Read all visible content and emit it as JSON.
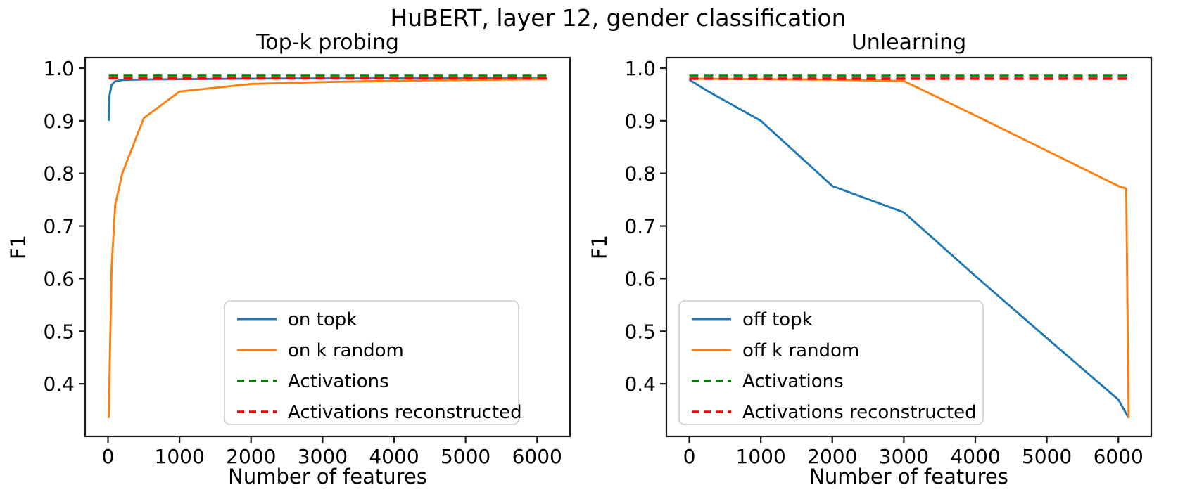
{
  "figure": {
    "title": "HuBERT, layer 12, gender classification",
    "background": "#ffffff"
  },
  "colors": {
    "blue": "#1f77b4",
    "orange": "#ff7f0e",
    "green": "#008000",
    "red": "#ff0000",
    "axis": "#1a1a1a",
    "text": "#000000",
    "legend_border": "#cccccc",
    "legend_bg": "#ffffff"
  },
  "chart_data": [
    {
      "type": "line",
      "title": "Top-k probing",
      "xlabel": "Number of features",
      "ylabel": "F1",
      "xlim": [
        -320,
        6460
      ],
      "ylim": [
        0.3,
        1.02
      ],
      "xticks": [
        0,
        1000,
        2000,
        3000,
        4000,
        5000,
        6000
      ],
      "yticks": [
        1.0,
        0.9,
        0.8,
        0.7,
        0.6,
        0.5,
        0.4
      ],
      "ytick_labels": [
        "1.0",
        "0.9",
        "0.8",
        "0.7",
        "0.6",
        "0.5",
        "0.4"
      ],
      "grid": false,
      "legend_position": "lower center inside",
      "series": [
        {
          "name": "on topk",
          "color_key": "blue",
          "style": "solid",
          "points": [
            [
              10,
              0.9
            ],
            [
              20,
              0.948
            ],
            [
              50,
              0.968
            ],
            [
              100,
              0.975
            ],
            [
              200,
              0.9775
            ],
            [
              500,
              0.9785
            ],
            [
              1000,
              0.979
            ],
            [
              2000,
              0.98
            ],
            [
              3000,
              0.9803
            ],
            [
              4000,
              0.9805
            ],
            [
              5000,
              0.9805
            ],
            [
              6144,
              0.9805
            ]
          ]
        },
        {
          "name": "on k random",
          "color_key": "orange",
          "style": "solid",
          "points": [
            [
              10,
              0.335
            ],
            [
              50,
              0.62
            ],
            [
              100,
              0.74
            ],
            [
              200,
              0.8
            ],
            [
              500,
              0.905
            ],
            [
              1000,
              0.9555
            ],
            [
              2000,
              0.97
            ],
            [
              3000,
              0.9735
            ],
            [
              4000,
              0.976
            ],
            [
              5000,
              0.9775
            ],
            [
              6144,
              0.979
            ]
          ]
        },
        {
          "name": "Activations",
          "color_key": "green",
          "style": "dashed",
          "points": [
            [
              10,
              0.9865
            ],
            [
              6144,
              0.9865
            ]
          ]
        },
        {
          "name": "Activations reconstructed",
          "color_key": "red",
          "style": "dashed",
          "points": [
            [
              10,
              0.981
            ],
            [
              6144,
              0.981
            ]
          ]
        }
      ]
    },
    {
      "type": "line",
      "title": "Unlearning",
      "xlabel": "Number of features",
      "ylabel": "F1",
      "xlim": [
        -320,
        6460
      ],
      "ylim": [
        0.3,
        1.02
      ],
      "xticks": [
        0,
        1000,
        2000,
        3000,
        4000,
        5000,
        6000
      ],
      "yticks": [
        1.0,
        0.9,
        0.8,
        0.7,
        0.6,
        0.5,
        0.4
      ],
      "ytick_labels": [
        "1.0",
        "0.9",
        "0.8",
        "0.7",
        "0.6",
        "0.5",
        "0.4"
      ],
      "grid": false,
      "legend_position": "lower left inside",
      "series": [
        {
          "name": "off topk",
          "color_key": "blue",
          "style": "solid",
          "points": [
            [
              0,
              0.978
            ],
            [
              250,
              0.957
            ],
            [
              500,
              0.938
            ],
            [
              1000,
              0.9
            ],
            [
              2000,
              0.776
            ],
            [
              3000,
              0.726
            ],
            [
              4000,
              0.605
            ],
            [
              5000,
              0.487
            ],
            [
              6000,
              0.37
            ],
            [
              6144,
              0.335
            ]
          ]
        },
        {
          "name": "off k random",
          "color_key": "orange",
          "style": "solid",
          "points": [
            [
              0,
              0.98
            ],
            [
              1000,
              0.979
            ],
            [
              2000,
              0.978
            ],
            [
              3000,
              0.9755
            ],
            [
              4000,
              0.91
            ],
            [
              5000,
              0.843
            ],
            [
              6000,
              0.776
            ],
            [
              6110,
              0.771
            ],
            [
              6144,
              0.335
            ]
          ]
        },
        {
          "name": "Activations",
          "color_key": "green",
          "style": "dashed",
          "points": [
            [
              0,
              0.9865
            ],
            [
              6144,
              0.9865
            ]
          ]
        },
        {
          "name": "Activations reconstructed",
          "color_key": "red",
          "style": "dashed",
          "points": [
            [
              0,
              0.98
            ],
            [
              6144,
              0.98
            ]
          ]
        }
      ]
    }
  ]
}
